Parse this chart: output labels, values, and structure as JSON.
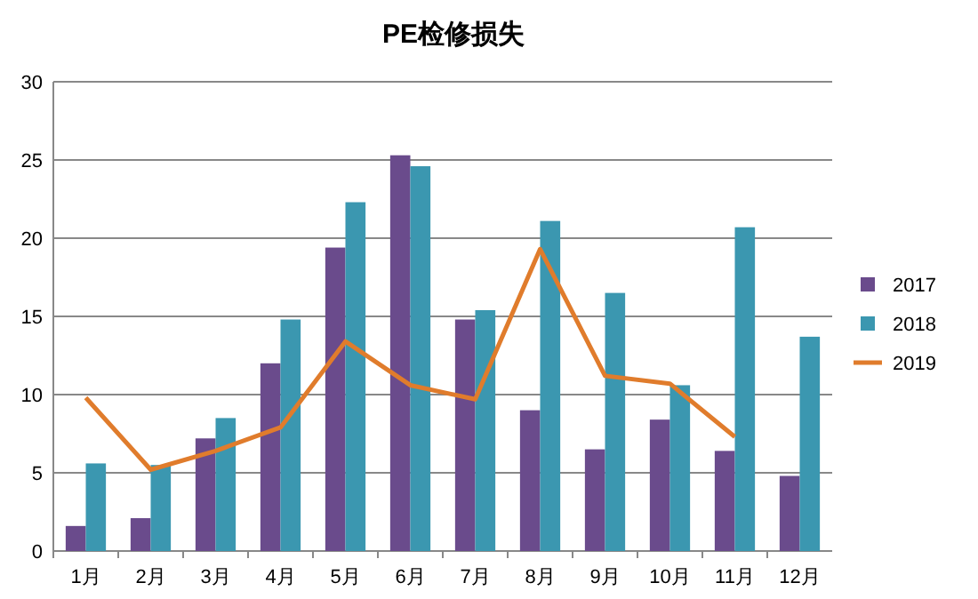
{
  "chart_data": {
    "type": "bar",
    "title": "PE检修损失",
    "categories": [
      "1月",
      "2月",
      "3月",
      "4月",
      "5月",
      "6月",
      "7月",
      "8月",
      "9月",
      "10月",
      "11月",
      "12月"
    ],
    "series": [
      {
        "name": "2017",
        "color": "#6a4b8c",
        "values": [
          1.6,
          2.1,
          7.2,
          12,
          19.4,
          25.3,
          14.8,
          9,
          6.5,
          8.4,
          6.4,
          4.8
        ]
      },
      {
        "name": "2018",
        "color": "#3b97b0",
        "values": [
          5.6,
          5.5,
          8.5,
          14.8,
          22.3,
          24.6,
          15.4,
          21.1,
          16.5,
          10.6,
          20.7,
          13.7
        ]
      },
      {
        "name": "2019",
        "type": "line",
        "color": "#e07c2c",
        "values": [
          9.8,
          5.2,
          6.4,
          7.9,
          13.4,
          10.6,
          9.7,
          19.3,
          11.2,
          10.7,
          7.3,
          null
        ]
      }
    ],
    "ylim": [
      0,
      30
    ],
    "yticks": [
      0,
      5,
      10,
      15,
      20,
      25,
      30
    ],
    "grid": "y",
    "legend": "right",
    "marker": "none"
  }
}
